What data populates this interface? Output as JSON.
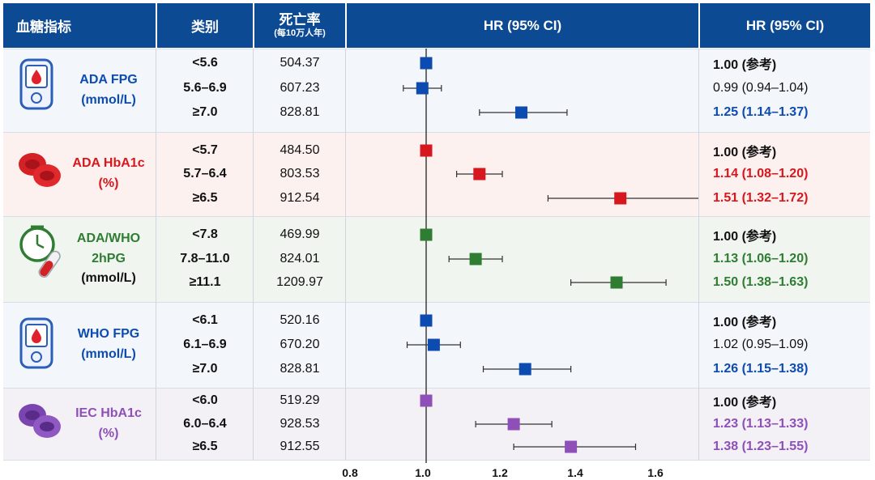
{
  "headers": {
    "indicator": "血糖指标",
    "category": "类别",
    "mortality": "死亡率",
    "mortality_unit": "(每10万人年)",
    "forest": "HR (95% CI)",
    "hr": "HR (95% CI)"
  },
  "colors": {
    "header": "#0d4a94",
    "blue": "#0c4bb0",
    "red": "#d6181e",
    "green": "#2e7d32",
    "purple": "#8e4fb8"
  },
  "groups": [
    {
      "name_lines": [
        "ADA FPG",
        "(mmol/L)"
      ],
      "icon": "glucose-meter-icon",
      "color": "#0c4bb0",
      "bg": "#f3f6fb",
      "rows": [
        {
          "category": "<5.6",
          "rate": "504.37",
          "hr_text": "1.00 (参考)",
          "hr": 1.0,
          "lo": null,
          "hi": null,
          "sig": false,
          "ref": true
        },
        {
          "category": "5.6–6.9",
          "rate": "607.23",
          "hr_text": "0.99 (0.94–1.04)",
          "hr": 0.99,
          "lo": 0.94,
          "hi": 1.04,
          "sig": false,
          "ref": false
        },
        {
          "category": "≥7.0",
          "rate": "828.81",
          "hr_text": "1.25 (1.14–1.37)",
          "hr": 1.25,
          "lo": 1.14,
          "hi": 1.37,
          "sig": true,
          "ref": false
        }
      ]
    },
    {
      "name_lines": [
        "ADA HbA1c",
        "(%)"
      ],
      "icon": "red-blood-cells-icon",
      "color": "#d6181e",
      "bg": "#fdf1ef",
      "rows": [
        {
          "category": "<5.7",
          "rate": "484.50",
          "hr_text": "1.00 (参考)",
          "hr": 1.0,
          "lo": null,
          "hi": null,
          "sig": false,
          "ref": true
        },
        {
          "category": "5.7–6.4",
          "rate": "803.53",
          "hr_text": "1.14 (1.08–1.20)",
          "hr": 1.14,
          "lo": 1.08,
          "hi": 1.2,
          "sig": true,
          "ref": false
        },
        {
          "category": "≥6.5",
          "rate": "912.54",
          "hr_text": "1.51 (1.32–1.72)",
          "hr": 1.51,
          "lo": 1.32,
          "hi": 1.72,
          "sig": true,
          "ref": false
        }
      ]
    },
    {
      "name_lines": [
        "ADA/WHO",
        "2hPG",
        "(mmol/L)"
      ],
      "icon": "clock-test-tube-icon",
      "color": "#2e7d32",
      "bg": "#f1f5ef",
      "rows": [
        {
          "category": "<7.8",
          "rate": "469.99",
          "hr_text": "1.00 (参考)",
          "hr": 1.0,
          "lo": null,
          "hi": null,
          "sig": false,
          "ref": true
        },
        {
          "category": "7.8–11.0",
          "rate": "824.01",
          "hr_text": "1.13 (1.06–1.20)",
          "hr": 1.13,
          "lo": 1.06,
          "hi": 1.2,
          "sig": true,
          "ref": false
        },
        {
          "category": "≥11.1",
          "rate": "1209.97",
          "hr_text": "1.50 (1.38–1.63)",
          "hr": 1.5,
          "lo": 1.38,
          "hi": 1.63,
          "sig": true,
          "ref": false
        }
      ]
    },
    {
      "name_lines": [
        "WHO FPG",
        "(mmol/L)"
      ],
      "icon": "glucose-meter-icon",
      "color": "#0c4bb0",
      "bg": "#f3f6fb",
      "rows": [
        {
          "category": "<6.1",
          "rate": "520.16",
          "hr_text": "1.00 (参考)",
          "hr": 1.0,
          "lo": null,
          "hi": null,
          "sig": false,
          "ref": true
        },
        {
          "category": "6.1–6.9",
          "rate": "670.20",
          "hr_text": "1.02 (0.95–1.09)",
          "hr": 1.02,
          "lo": 0.95,
          "hi": 1.09,
          "sig": false,
          "ref": false
        },
        {
          "category": "≥7.0",
          "rate": "828.81",
          "hr_text": "1.26 (1.15–1.38)",
          "hr": 1.26,
          "lo": 1.15,
          "hi": 1.38,
          "sig": true,
          "ref": false
        }
      ]
    },
    {
      "name_lines": [
        "IEC HbA1c",
        "(%)"
      ],
      "icon": "purple-blood-cells-icon",
      "color": "#8e4fb8",
      "bg": "#f3f0f6",
      "rows": [
        {
          "category": "<6.0",
          "rate": "519.29",
          "hr_text": "1.00 (参考)",
          "hr": 1.0,
          "lo": null,
          "hi": null,
          "sig": false,
          "ref": true
        },
        {
          "category": "6.0–6.4",
          "rate": "928.53",
          "hr_text": "1.23 (1.13–1.33)",
          "hr": 1.23,
          "lo": 1.13,
          "hi": 1.33,
          "sig": true,
          "ref": false
        },
        {
          "category": "≥6.5",
          "rate": "912.55",
          "hr_text": "1.38 (1.23–1.55)",
          "hr": 1.38,
          "lo": 1.23,
          "hi": 1.55,
          "sig": true,
          "ref": false
        }
      ]
    }
  ],
  "chart_data": {
    "type": "scatter",
    "title": "",
    "xlabel": "",
    "ylabel": "",
    "xlim": [
      0.8,
      1.65
    ],
    "reference_line": 1.0,
    "xticks": [
      "0.8",
      "1.0",
      "1.2",
      "1.4",
      "1.6"
    ],
    "xtick_values": [
      0.8,
      1.0,
      1.2,
      1.4,
      1.6
    ],
    "grid": false,
    "series": [
      {
        "group": "ADA FPG",
        "color": "#0c4bb0",
        "categories": [
          "<5.6",
          "5.6–6.9",
          "≥7.0"
        ],
        "hr": [
          1.0,
          0.99,
          1.25
        ],
        "lower": [
          null,
          0.94,
          1.14
        ],
        "upper": [
          null,
          1.04,
          1.37
        ]
      },
      {
        "group": "ADA HbA1c",
        "color": "#d6181e",
        "categories": [
          "<5.7",
          "5.7–6.4",
          "≥6.5"
        ],
        "hr": [
          1.0,
          1.14,
          1.51
        ],
        "lower": [
          null,
          1.08,
          1.32
        ],
        "upper": [
          null,
          1.2,
          1.72
        ]
      },
      {
        "group": "ADA/WHO 2hPG",
        "color": "#2e7d32",
        "categories": [
          "<7.8",
          "7.8–11.0",
          "≥11.1"
        ],
        "hr": [
          1.0,
          1.13,
          1.5
        ],
        "lower": [
          null,
          1.06,
          1.38
        ],
        "upper": [
          null,
          1.2,
          1.63
        ]
      },
      {
        "group": "WHO FPG",
        "color": "#0c4bb0",
        "categories": [
          "<6.1",
          "6.1–6.9",
          "≥7.0"
        ],
        "hr": [
          1.0,
          1.02,
          1.26
        ],
        "lower": [
          null,
          0.95,
          1.15
        ],
        "upper": [
          null,
          1.09,
          1.38
        ]
      },
      {
        "group": "IEC HbA1c",
        "color": "#8e4fb8",
        "categories": [
          "<6.0",
          "6.0–6.4",
          "≥6.5"
        ],
        "hr": [
          1.0,
          1.23,
          1.38
        ],
        "lower": [
          null,
          1.13,
          1.23
        ],
        "upper": [
          null,
          1.33,
          1.55
        ]
      }
    ]
  }
}
